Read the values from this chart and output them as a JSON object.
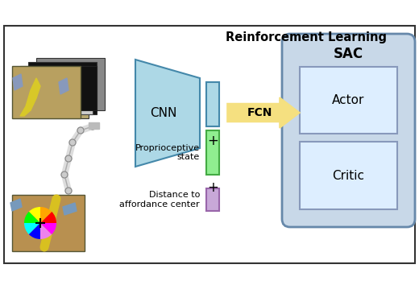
{
  "title": "Reinforcement Learning",
  "cnn_label": "CNN",
  "fcn_label": "FCN",
  "sac_label": "SAC",
  "actor_label": "Actor",
  "critic_label": "Critic",
  "prop_label": "Proprioceptive\nstate",
  "dist_label": "Distance to\naffordance center",
  "bg_color": "#ffffff",
  "border_color": "#333333",
  "cnn_trap_color": "#add8e6",
  "cnn_trap_edge": "#4488aa",
  "cnn_out_color": "#add8e6",
  "cnn_out_edge": "#4488aa",
  "prop_bar_color": "#90ee90",
  "prop_bar_edge": "#44aa44",
  "dist_bar_color": "#c8a8d8",
  "dist_bar_edge": "#9966aa",
  "fcn_arrow_color": "#f5e080",
  "fcn_arrow_edge": "#c8a030",
  "sac_box_color": "#c8d8e8",
  "sac_box_edge": "#6688aa",
  "actor_box_color": "#ddeeff",
  "actor_box_edge": "#8899bb",
  "critic_box_color": "#ddeeff",
  "critic_box_edge": "#8899bb",
  "figsize": [
    5.2,
    3.54
  ],
  "dpi": 100
}
